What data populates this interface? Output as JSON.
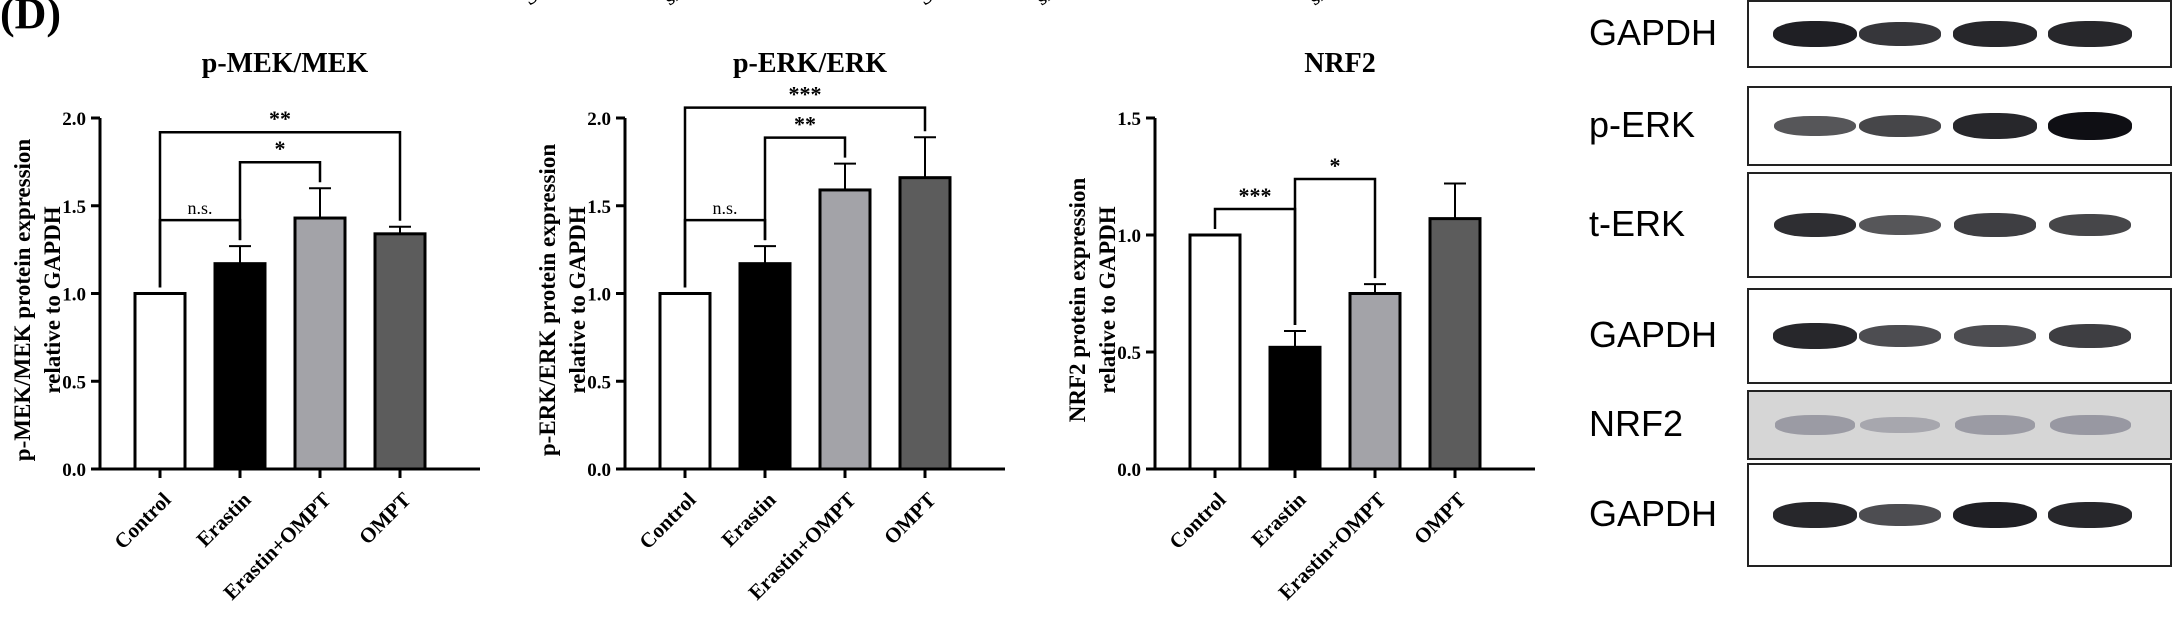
{
  "panel_label": "(D)",
  "cut_off_labels": [
    "Scra",
    "si",
    "Scra",
    "si",
    "siL"
  ],
  "significance_symbols": {
    "ns": "n.s.",
    "p1": "*",
    "p2": "**",
    "p3": "***"
  },
  "colors": {
    "Control": "#ffffff",
    "Erastin": "#000000",
    "Erastin+OMPT": "#a3a3a8",
    "OMPT": "#5c5c5c"
  },
  "chart_data": [
    {
      "type": "bar",
      "title": "p-MEK/MEK",
      "ylabel": [
        "p-MEK/MEK protein expression",
        "relative to GAPDH"
      ],
      "categories": [
        "Control",
        "Erastin",
        "Erastin+OMPT",
        "OMPT"
      ],
      "values": [
        1.0,
        1.17,
        1.43,
        1.34
      ],
      "errors": [
        0.0,
        0.1,
        0.17,
        0.04
      ],
      "ylim": [
        0,
        2.0
      ],
      "yticks": [
        "0.0",
        "0.5",
        "1.0",
        "1.5",
        "2.0"
      ],
      "comparisons": [
        {
          "from": 0,
          "to": 1,
          "label": "n.s."
        },
        {
          "from": 1,
          "to": 2,
          "label": "*"
        },
        {
          "from": 0,
          "to": 3,
          "label": "**"
        }
      ]
    },
    {
      "type": "bar",
      "title": "p-ERK/ERK",
      "ylabel": [
        "p-ERK/ERK protein expression",
        "relative to GAPDH"
      ],
      "categories": [
        "Control",
        "Erastin",
        "Erastin+OMPT",
        "OMPT"
      ],
      "values": [
        1.0,
        1.17,
        1.59,
        1.66
      ],
      "errors": [
        0.0,
        0.1,
        0.15,
        0.23
      ],
      "ylim": [
        0,
        2.0
      ],
      "yticks": [
        "0.0",
        "0.5",
        "1.0",
        "1.5",
        "2.0"
      ],
      "comparisons": [
        {
          "from": 0,
          "to": 1,
          "label": "n.s."
        },
        {
          "from": 1,
          "to": 2,
          "label": "**"
        },
        {
          "from": 0,
          "to": 3,
          "label": "***"
        }
      ]
    },
    {
      "type": "bar",
      "title": "NRF2",
      "ylabel": [
        "NRF2 protein expression",
        "relative to GAPDH"
      ],
      "categories": [
        "Control",
        "Erastin",
        "Erastin+OMPT",
        "OMPT"
      ],
      "values": [
        1.0,
        0.52,
        0.75,
        1.07
      ],
      "errors": [
        0.0,
        0.07,
        0.04,
        0.15
      ],
      "ylim": [
        0,
        1.5
      ],
      "yticks": [
        "0.0",
        "0.5",
        "1.0",
        "1.5"
      ],
      "comparisons": [
        {
          "from": 0,
          "to": 1,
          "label": "***"
        },
        {
          "from": 1,
          "to": 2,
          "label": "*"
        }
      ]
    }
  ],
  "blots": [
    {
      "label": "GAPDH",
      "intensity": [
        0.9,
        0.75,
        0.85,
        0.85
      ],
      "style": "dark"
    },
    {
      "label": "p-ERK",
      "intensity": [
        0.55,
        0.65,
        0.85,
        1.0
      ],
      "style": "dark"
    },
    {
      "label": "t-ERK",
      "intensity": [
        0.8,
        0.55,
        0.7,
        0.65
      ],
      "style": "dark"
    },
    {
      "label": "GAPDH",
      "intensity": [
        0.85,
        0.6,
        0.6,
        0.7
      ],
      "style": "dark"
    },
    {
      "label": "NRF2",
      "intensity": [
        0.45,
        0.25,
        0.45,
        0.5
      ],
      "style": "faint"
    },
    {
      "label": "GAPDH",
      "intensity": [
        0.85,
        0.6,
        0.9,
        0.85
      ],
      "style": "dark"
    }
  ]
}
